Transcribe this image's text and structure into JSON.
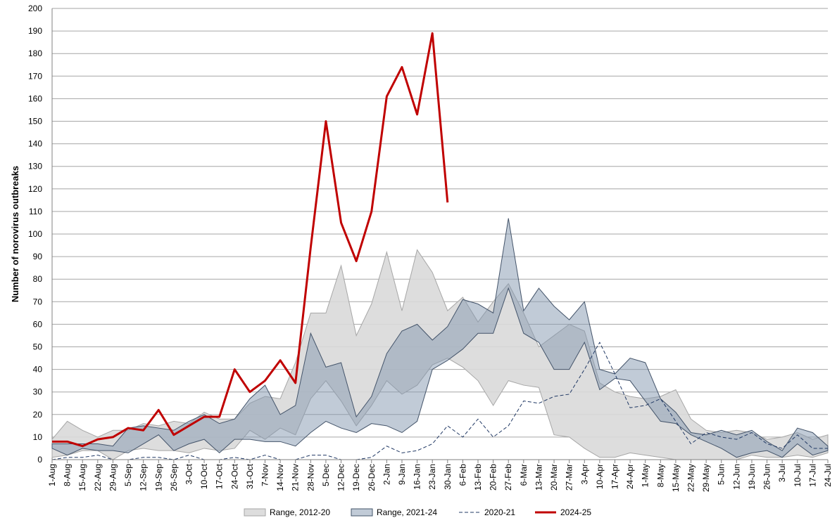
{
  "chart_data": {
    "type": "line",
    "y_label": "Number of norovirus outbreaks",
    "categories": [
      "1-Aug",
      "8-Aug",
      "15-Aug",
      "22-Aug",
      "29-Aug",
      "5-Sep",
      "12-Sep",
      "19-Sep",
      "26-Sep",
      "3-Oct",
      "10-Oct",
      "17-Oct",
      "24-Oct",
      "31-Oct",
      "7-Nov",
      "14-Nov",
      "21-Nov",
      "28-Nov",
      "5-Dec",
      "12-Dec",
      "19-Dec",
      "26-Dec",
      "2-Jan",
      "9-Jan",
      "16-Jan",
      "23-Jan",
      "30-Jan",
      "6-Feb",
      "13-Feb",
      "20-Feb",
      "27-Feb",
      "6-Mar",
      "13-Mar",
      "20-Mar",
      "27-Mar",
      "3-Apr",
      "10-Apr",
      "17-Apr",
      "24-Apr",
      "1-May",
      "8-May",
      "15-May",
      "22-May",
      "29-May",
      "5-Jun",
      "12-Jun",
      "19-Jun",
      "26-Jun",
      "3-Jul",
      "10-Jul",
      "17-Jul",
      "24-Jul"
    ],
    "ylim": [
      0,
      200
    ],
    "yticks": [
      0,
      10,
      20,
      30,
      40,
      50,
      60,
      70,
      80,
      90,
      100,
      110,
      120,
      130,
      140,
      150,
      160,
      170,
      180,
      190,
      200
    ],
    "grid": true,
    "series": [
      {
        "name": "Range, 2012-20",
        "kind": "range",
        "color": "#d9d9d9",
        "edge": "#a6a6a6",
        "low": [
          1,
          2,
          4,
          4,
          0,
          4,
          5,
          4,
          4,
          3,
          5,
          4,
          5,
          13,
          9,
          14,
          11,
          27,
          35,
          26,
          15,
          24,
          35,
          29,
          33,
          42,
          45,
          41,
          35,
          24,
          35,
          33,
          32,
          11,
          10,
          5,
          1,
          1,
          3,
          2,
          1,
          0,
          0,
          0,
          0,
          0,
          2,
          1,
          1,
          2,
          1,
          3
        ],
        "high": [
          9,
          17,
          13,
          10,
          13,
          13,
          16,
          15,
          17,
          16,
          21,
          18,
          18,
          25,
          28,
          27,
          43,
          65,
          65,
          86,
          55,
          69,
          92,
          66,
          93,
          83,
          66,
          72,
          61,
          70,
          78,
          65,
          50,
          55,
          60,
          57,
          34,
          30,
          28,
          27,
          28,
          31,
          18,
          13,
          12,
          13,
          12,
          9,
          10,
          12,
          9,
          11
        ]
      },
      {
        "name": "Range, 2021-24",
        "kind": "range",
        "color": "#8497b0",
        "edge": "#44546a",
        "low": [
          5,
          2,
          5,
          4,
          4,
          3,
          7,
          11,
          4,
          7,
          9,
          3,
          9,
          9,
          8,
          8,
          6,
          12,
          17,
          14,
          12,
          16,
          15,
          12,
          17,
          40,
          44,
          49,
          56,
          56,
          76,
          56,
          52,
          40,
          40,
          52,
          31,
          36,
          35,
          26,
          17,
          16,
          11,
          8,
          5,
          1,
          3,
          4,
          1,
          7,
          2,
          4
        ],
        "high": [
          7,
          7,
          7,
          7,
          6,
          14,
          15,
          14,
          13,
          17,
          20,
          16,
          18,
          27,
          33,
          20,
          24,
          56,
          41,
          43,
          19,
          28,
          47,
          57,
          60,
          53,
          59,
          71,
          69,
          65,
          107,
          66,
          76,
          68,
          62,
          70,
          40,
          38,
          45,
          43,
          27,
          21,
          12,
          11,
          13,
          11,
          13,
          8,
          4,
          14,
          12,
          6
        ]
      },
      {
        "name": "2020-21",
        "kind": "dashed",
        "color": "#203864",
        "values": [
          0,
          1,
          1,
          2,
          0,
          0,
          1,
          1,
          0,
          2,
          0,
          0,
          1,
          0,
          2,
          0,
          0,
          2,
          2,
          0,
          0,
          1,
          6,
          3,
          4,
          7,
          15,
          10,
          18,
          10,
          15,
          26,
          25,
          28,
          29,
          40,
          52,
          38,
          23,
          24,
          27,
          17,
          7,
          12,
          10,
          9,
          12,
          7,
          5,
          11,
          5,
          5
        ]
      },
      {
        "name": "2024-25",
        "kind": "line",
        "color": "#c00000",
        "values": [
          8,
          8,
          6,
          9,
          10,
          14,
          13,
          22,
          11,
          15,
          19,
          19,
          40,
          30,
          35,
          44,
          34,
          94,
          150,
          105,
          88,
          110,
          161,
          174,
          153,
          189,
          114,
          null,
          null,
          null,
          null,
          null,
          null,
          null,
          null,
          null,
          null,
          null,
          null,
          null,
          null,
          null,
          null,
          null,
          null,
          null,
          null,
          null,
          null,
          null,
          null,
          null
        ]
      }
    ]
  }
}
